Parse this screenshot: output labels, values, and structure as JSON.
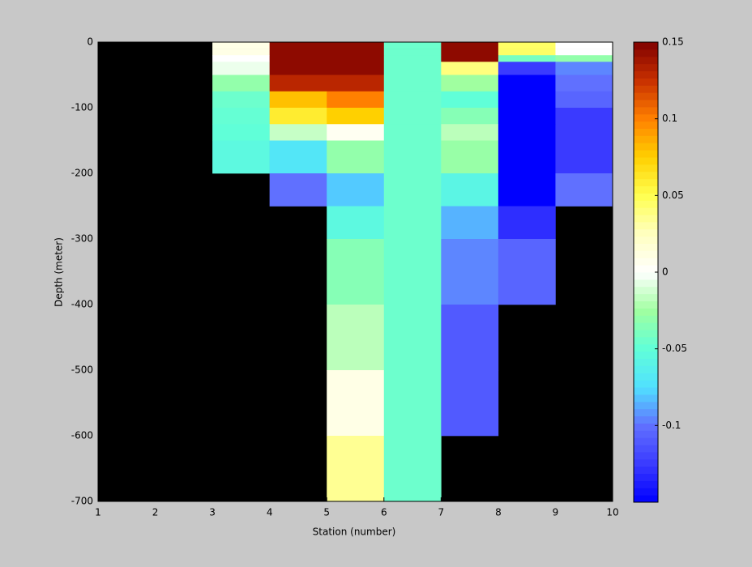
{
  "chart_data": {
    "type": "heatmap",
    "xlabel": "Station (number)",
    "ylabel": "Depth (meter)",
    "x": [
      1,
      2,
      3,
      4,
      5,
      6,
      7,
      8,
      9,
      10
    ],
    "y": [
      0,
      -10,
      -20,
      -30,
      -50,
      -75,
      -100,
      -125,
      -150,
      -200,
      -250,
      -300,
      -400,
      -500,
      -600,
      -700
    ],
    "values": [
      [
        null,
        null,
        0.01,
        0.145,
        0.145,
        -0.045,
        0.145,
        0.045,
        0
      ],
      [
        null,
        null,
        0.01,
        0.145,
        0.145,
        -0.045,
        0.145,
        0.045,
        0
      ],
      [
        null,
        null,
        0,
        0.145,
        0.145,
        -0.045,
        0.145,
        -0.04,
        -0.03
      ],
      [
        null,
        null,
        -0.005,
        0.145,
        0.145,
        -0.045,
        0.04,
        -0.125,
        -0.095
      ],
      [
        null,
        null,
        -0.03,
        0.13,
        0.13,
        -0.045,
        -0.025,
        -0.15,
        -0.1
      ],
      [
        null,
        null,
        -0.045,
        0.08,
        0.1,
        -0.045,
        -0.05,
        -0.15,
        -0.105
      ],
      [
        null,
        null,
        -0.048,
        0.06,
        0.075,
        -0.045,
        -0.035,
        -0.15,
        -0.125
      ],
      [
        null,
        null,
        -0.05,
        -0.015,
        0.005,
        -0.045,
        -0.018,
        -0.15,
        -0.125
      ],
      [
        null,
        null,
        -0.055,
        -0.07,
        -0.03,
        -0.045,
        -0.028,
        -0.15,
        -0.125
      ],
      [
        null,
        null,
        null,
        -0.1,
        -0.08,
        -0.045,
        -0.058,
        -0.15,
        -0.1
      ],
      [
        null,
        null,
        null,
        null,
        -0.055,
        -0.045,
        -0.085,
        -0.13,
        null
      ],
      [
        null,
        null,
        null,
        null,
        -0.035,
        -0.045,
        -0.095,
        -0.105,
        null
      ],
      [
        null,
        null,
        null,
        null,
        -0.018,
        -0.045,
        -0.11,
        null,
        null
      ],
      [
        null,
        null,
        null,
        null,
        0.01,
        -0.045,
        -0.11,
        null,
        null
      ],
      [
        null,
        null,
        null,
        null,
        0.035,
        -0.045,
        null,
        null,
        null
      ]
    ],
    "xlim": [
      1,
      10
    ],
    "ylim": [
      -700,
      0
    ],
    "xticks": [
      1,
      2,
      3,
      4,
      5,
      6,
      7,
      8,
      9,
      10
    ],
    "yticks": [
      -700,
      -600,
      -500,
      -400,
      -300,
      -200,
      -100,
      0
    ],
    "clim": [
      -0.15,
      0.15
    ],
    "cticks": [
      -0.1,
      -0.05,
      0,
      0.05,
      0.1,
      0.15
    ],
    "colormap": [
      "#0000ff",
      "#3a3aff",
      "#6070ff",
      "#50e0ff",
      "#60ffd8",
      "#a0ffa0",
      "#ffffff",
      "#ffffc0",
      "#ffff50",
      "#ffd000",
      "#ff8000",
      "#c83000",
      "#800000"
    ],
    "nan_color": "#000000"
  }
}
